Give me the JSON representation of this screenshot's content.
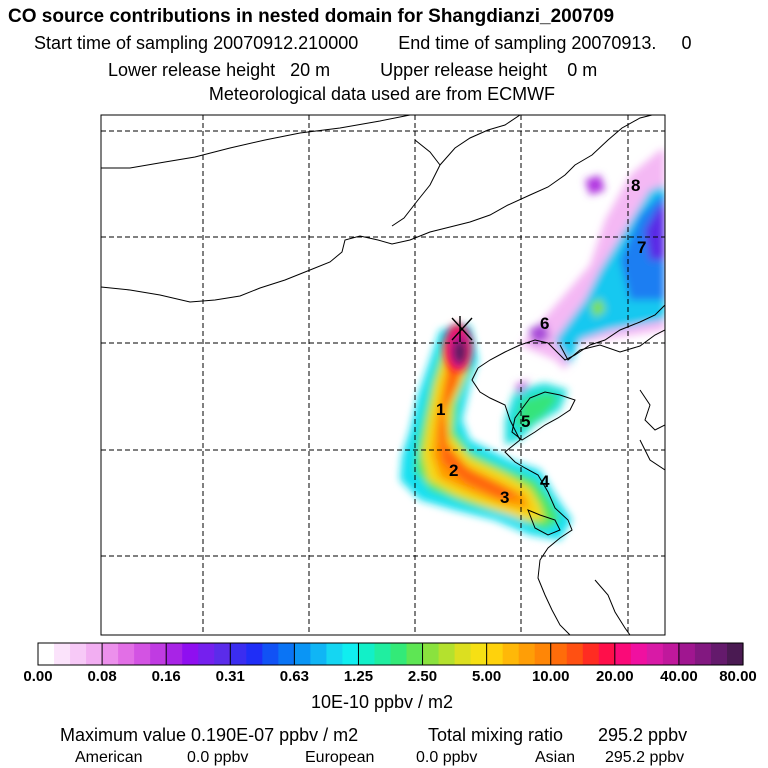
{
  "header": {
    "title": "CO  source contributions in nested domain for Shangdianzi_200709",
    "start_label": "Start time of sampling 20070912.210000",
    "end_label": "End time of sampling 20070913.     0",
    "lower_label": "Lower release height   20 m",
    "upper_label": "Upper release height    0 m",
    "met_label": "Meteorological data used are from ECMWF"
  },
  "chart_data": {
    "type": "heatmap",
    "map": {
      "grid": "on",
      "site_marker": "x",
      "regions": [
        {
          "label": "1"
        },
        {
          "label": "2"
        },
        {
          "label": "3"
        },
        {
          "label": "4"
        },
        {
          "label": "5"
        },
        {
          "label": "6"
        },
        {
          "label": "7"
        },
        {
          "label": "8"
        }
      ]
    },
    "colorbar": {
      "colors": [
        "#ffffff",
        "#fbe3fb",
        "#f7c9f7",
        "#f2aef2",
        "#ec90ec",
        "#e26fe6",
        "#d353e3",
        "#c03be2",
        "#a824e6",
        "#8f0ff0",
        "#7520ee",
        "#5b2cea",
        "#3b2df0",
        "#1f2ef7",
        "#1152f5",
        "#0a74f5",
        "#0a95f5",
        "#10b5f5",
        "#15d6f2",
        "#10eef0",
        "#12f0c8",
        "#20eea0",
        "#33ea78",
        "#5ee654",
        "#8ae23e",
        "#b4e12e",
        "#dcdf20",
        "#f6e014",
        "#ffd20c",
        "#ffb808",
        "#ff9e06",
        "#ff8606",
        "#ff6c0a",
        "#ff5012",
        "#ff2c22",
        "#ff0f4a",
        "#fa0a78",
        "#f010a0",
        "#d81aa6",
        "#c0189c",
        "#a01690",
        "#821880",
        "#641a6c",
        "#4a1a52"
      ],
      "tick_labels": [
        "0.00",
        "0.08",
        "0.16",
        "0.31",
        "0.63",
        "1.25",
        "2.50",
        "5.00",
        "10.00",
        "20.00",
        "40.00",
        "80.00"
      ],
      "unit_label": "10E-10 ppbv / m2"
    }
  },
  "footer": {
    "max_label": "Maximum value  0.190E-07 ppbv / m2",
    "total_label": "Total mixing ratio",
    "total_value": "295.2 ppbv",
    "american_label": "American",
    "american_value": "0.0 ppbv",
    "european_label": "European",
    "european_value": "0.0 ppbv",
    "asian_label": "Asian",
    "asian_value": "295.2 ppbv"
  }
}
